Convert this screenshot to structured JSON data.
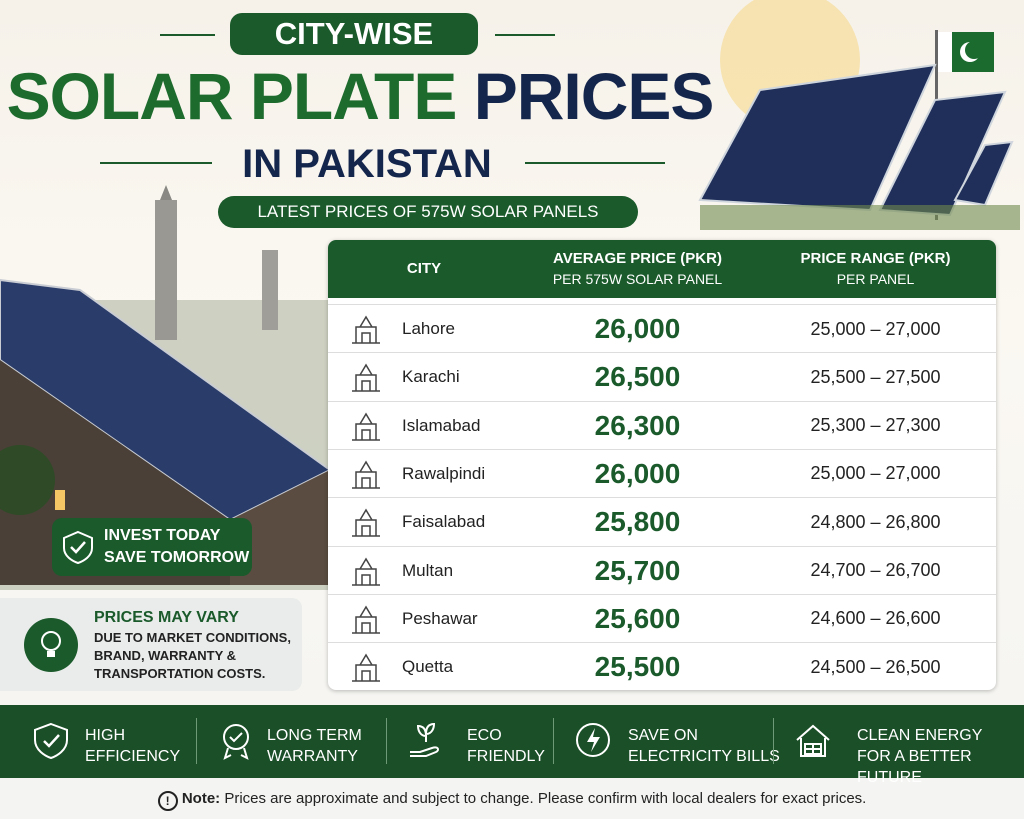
{
  "header": {
    "badge": "CITY-WISE",
    "title_green": "SOLAR PLATE",
    "title_dark": "PRICES",
    "subtitle": "IN PAKISTAN",
    "ribbon": "LATEST PRICES OF 575W SOLAR PANELS"
  },
  "table": {
    "columns": [
      {
        "title": "CITY"
      },
      {
        "title": "AVERAGE PRICE (PKR)",
        "subtitle": "PER 575W SOLAR PANEL"
      },
      {
        "title": "PRICE RANGE (PKR)",
        "subtitle": "PER PANEL"
      }
    ],
    "rows": [
      [
        "Lahore",
        "26,000",
        "25,000 – 27,000"
      ],
      [
        "Karachi",
        "26,500",
        "25,500 – 27,500"
      ],
      [
        "Islamabad",
        "26,300",
        "25,300 – 27,300"
      ],
      [
        "Rawalpindi",
        "26,000",
        "25,000 – 27,000"
      ],
      [
        "Faisalabad",
        "25,800",
        "24,800 – 26,800"
      ],
      [
        "Multan",
        "25,700",
        "24,700 – 26,700"
      ],
      [
        "Peshawar",
        "25,600",
        "24,600 – 26,600"
      ],
      [
        "Quetta",
        "25,500",
        "24,500 – 26,500"
      ]
    ]
  },
  "invest": [
    "INVEST TODAY",
    "SAVE TOMORROW"
  ],
  "notice": {
    "title": "PRICES MAY VARY",
    "lines": [
      "DUE TO MARKET CONDITIONS,",
      "BRAND, WARRANTY &",
      "TRANSPORTATION COSTS."
    ]
  },
  "features": [
    [
      "HIGH",
      "EFFICIENCY"
    ],
    [
      "LONG TERM",
      "WARRANTY"
    ],
    [
      "ECO",
      "FRIENDLY"
    ],
    [
      "SAVE ON",
      "ELECTRICITY BILLS"
    ],
    [
      "CLEAN ENERGY",
      "FOR A BETTER FUTURE"
    ]
  ],
  "footnote": {
    "label": "Note:",
    "text": "Prices are approximate and subject to change. Please confirm with local dealers for exact prices."
  }
}
